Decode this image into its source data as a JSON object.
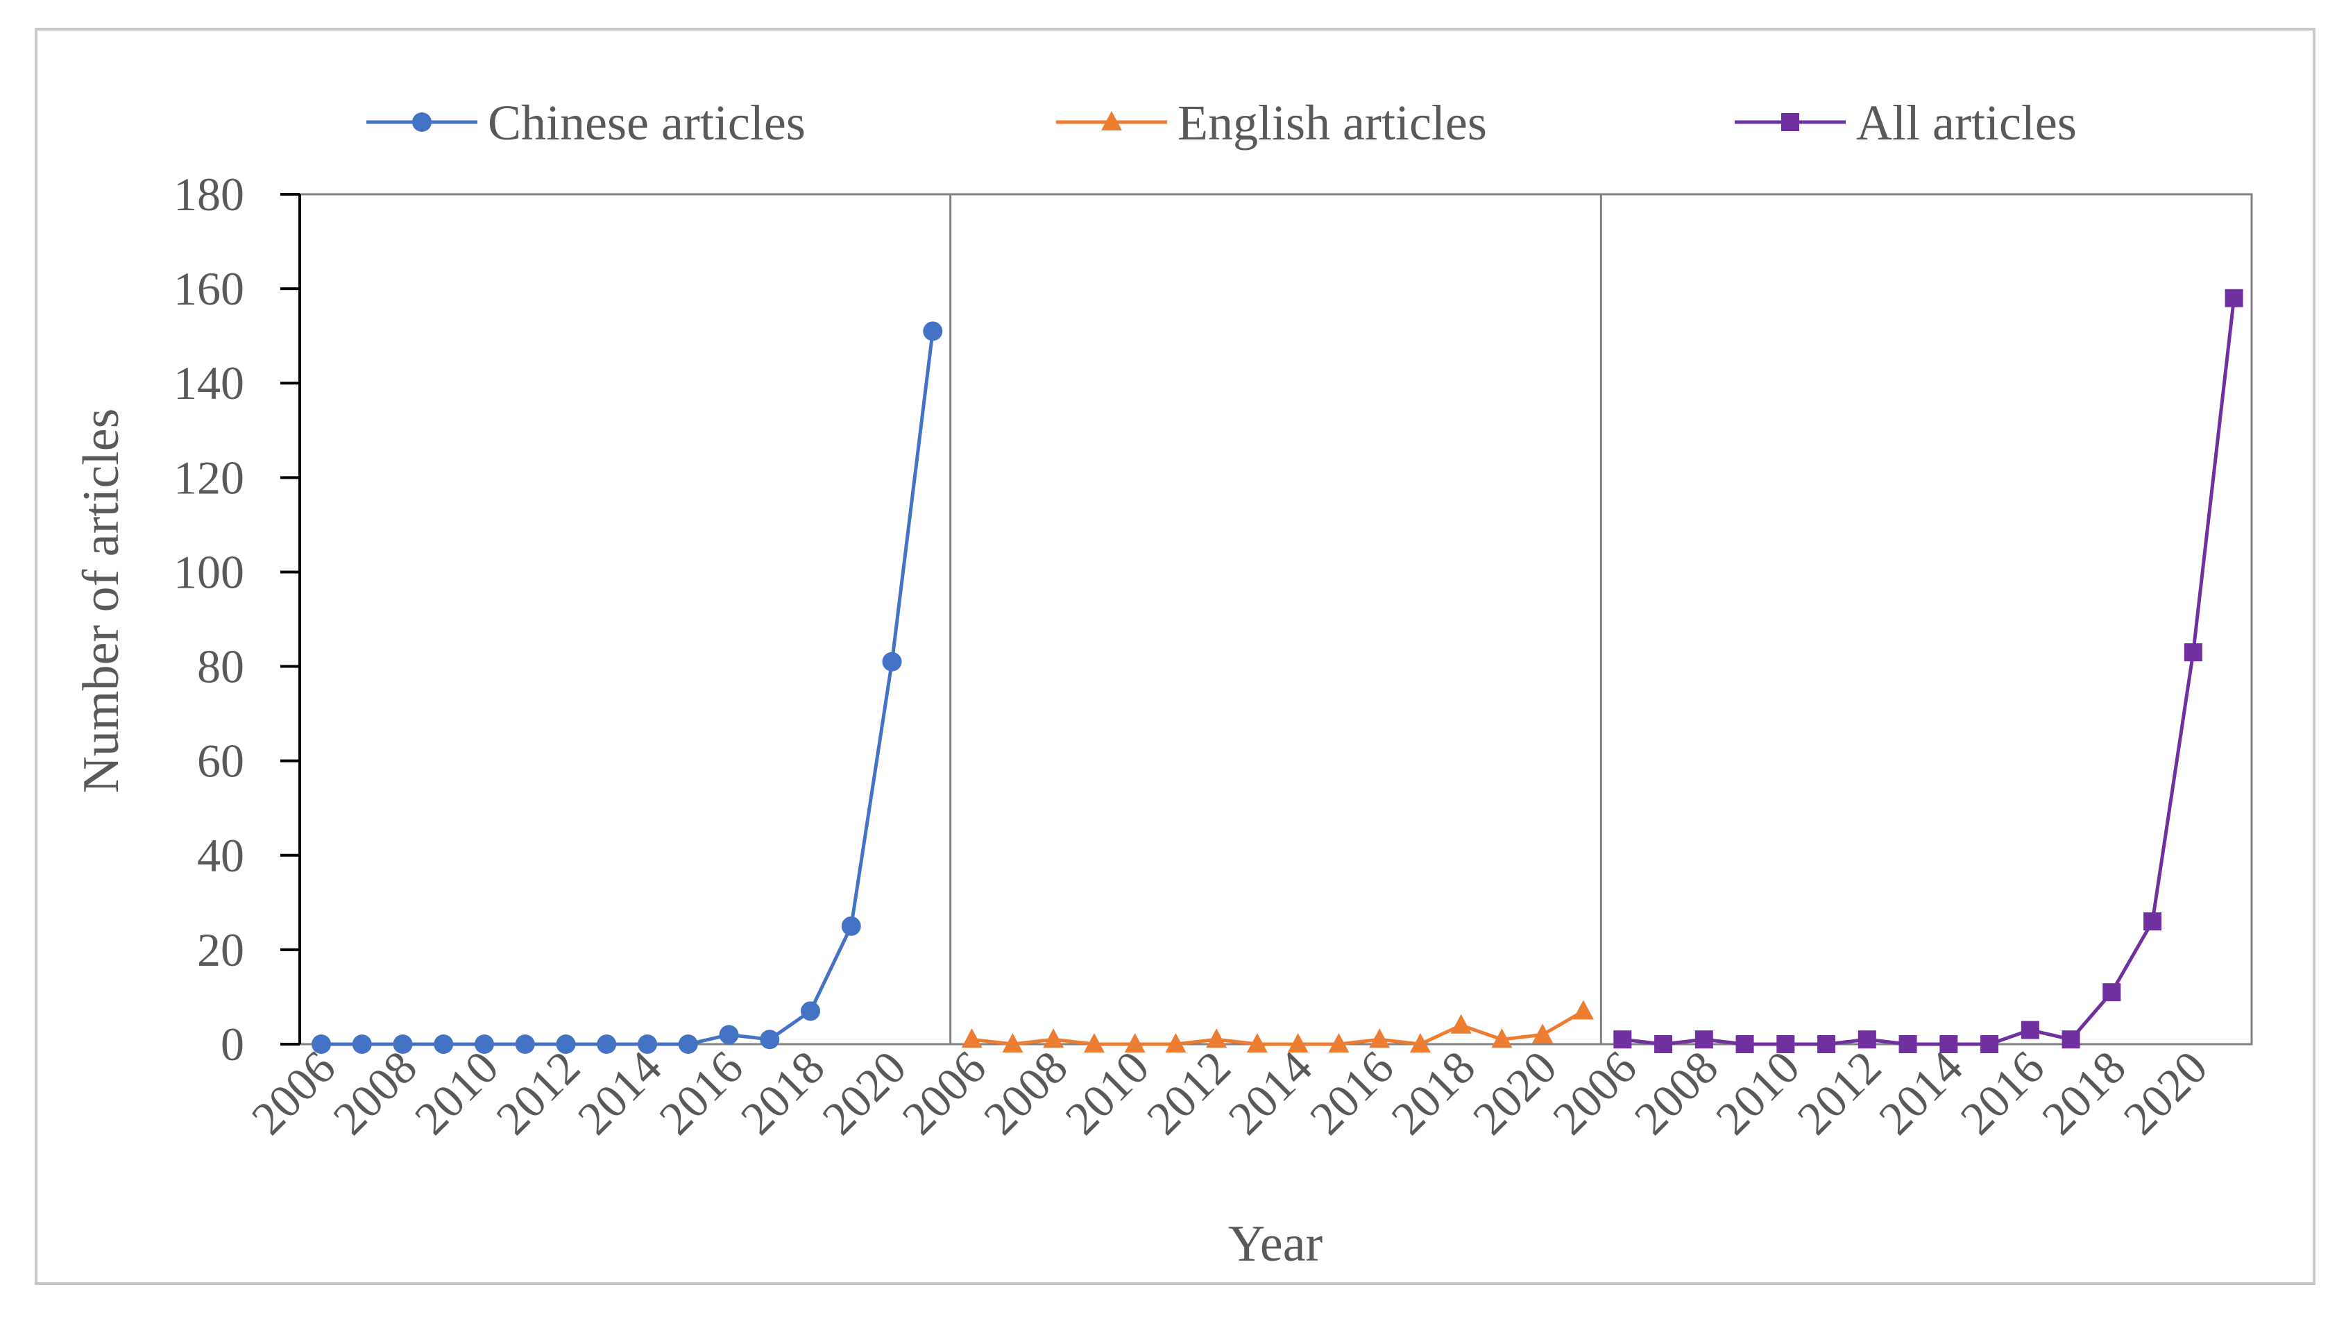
{
  "chart_data": {
    "type": "line",
    "title": "",
    "xlabel": "Year",
    "ylabel": "Number of articles",
    "ylim": [
      0,
      180
    ],
    "yticks": [
      0,
      20,
      40,
      60,
      80,
      100,
      120,
      140,
      160,
      180
    ],
    "grid": false,
    "legend_position": "top",
    "panel_categories": [
      2006,
      2007,
      2008,
      2009,
      2010,
      2011,
      2012,
      2013,
      2014,
      2015,
      2016,
      2017,
      2018,
      2019,
      2020,
      2021
    ],
    "xtick_labels": [
      "2006",
      "2008",
      "2010",
      "2012",
      "2014",
      "2016",
      "2018",
      "2020"
    ],
    "series": [
      {
        "name": "Chinese articles",
        "color": "#4472C4",
        "marker": "circle",
        "values": [
          0,
          0,
          0,
          0,
          0,
          0,
          0,
          0,
          0,
          0,
          2,
          1,
          7,
          25,
          81,
          151
        ]
      },
      {
        "name": "English articles",
        "color": "#ED7D31",
        "marker": "triangle",
        "values": [
          1,
          0,
          1,
          0,
          0,
          0,
          1,
          0,
          0,
          0,
          1,
          0,
          4,
          1,
          2,
          7
        ]
      },
      {
        "name": "All articles",
        "color": "#7030A0",
        "marker": "square",
        "values": [
          1,
          0,
          1,
          0,
          0,
          0,
          1,
          0,
          0,
          0,
          3,
          1,
          11,
          26,
          83,
          158
        ]
      }
    ]
  }
}
